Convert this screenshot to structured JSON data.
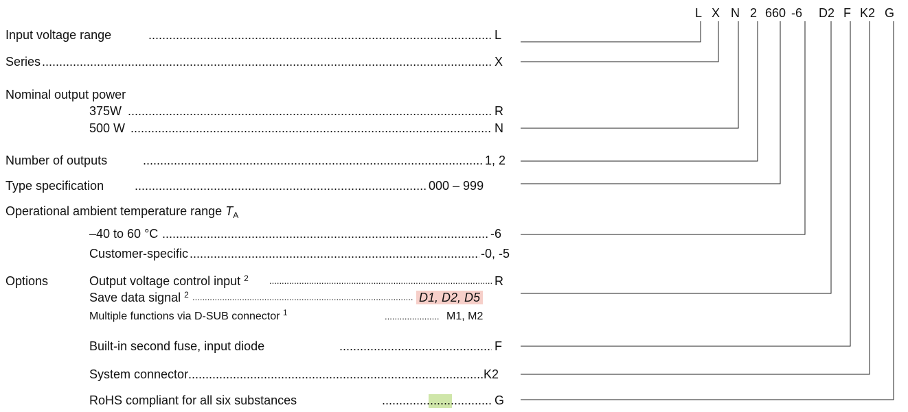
{
  "header_codes": [
    "L",
    "X",
    "N",
    "2",
    "660",
    "-6",
    "D2",
    "F",
    "K2",
    "G"
  ],
  "rows": {
    "input_voltage": {
      "label": "Input voltage range",
      "code": "L"
    },
    "series": {
      "label": "Series",
      "code": "X"
    },
    "nominal_output": {
      "label": "Nominal output power"
    },
    "p375": {
      "label": "375W",
      "code": "R"
    },
    "p500": {
      "label": "500 W",
      "code": "N"
    },
    "num_outputs": {
      "label": "Number of outputs",
      "code": "1, 2"
    },
    "type_spec": {
      "label": "Type specification",
      "code": "000 – 999"
    },
    "ambient": {
      "label": "Operational ambient temperature range",
      "symbol": "T",
      "subscript": "A"
    },
    "temp_range": {
      "label": "–40 to 60 °C",
      "code": "-6"
    },
    "customer": {
      "label": "Customer-specific",
      "code": "-0, -5"
    },
    "options": {
      "label": "Options"
    },
    "ovci": {
      "label": "Output voltage control input",
      "note": "2",
      "code": "R"
    },
    "save_data": {
      "label": "Save data signal",
      "note": "2",
      "code": "D1, D2, D5"
    },
    "multi": {
      "label": "Multiple functions via D-SUB connector",
      "note": "1",
      "code": "M1, M2"
    },
    "fuse": {
      "label": "Built-in second fuse, input diode",
      "code": "F"
    },
    "sysconn": {
      "label": "System connector",
      "code": "K2"
    },
    "rohs": {
      "label": "RoHS compliant for all six substances",
      "code": "G"
    }
  },
  "colors": {
    "highlight_red": "#f6cfc9",
    "highlight_green": "#cfe6a9",
    "line": "#222222"
  }
}
